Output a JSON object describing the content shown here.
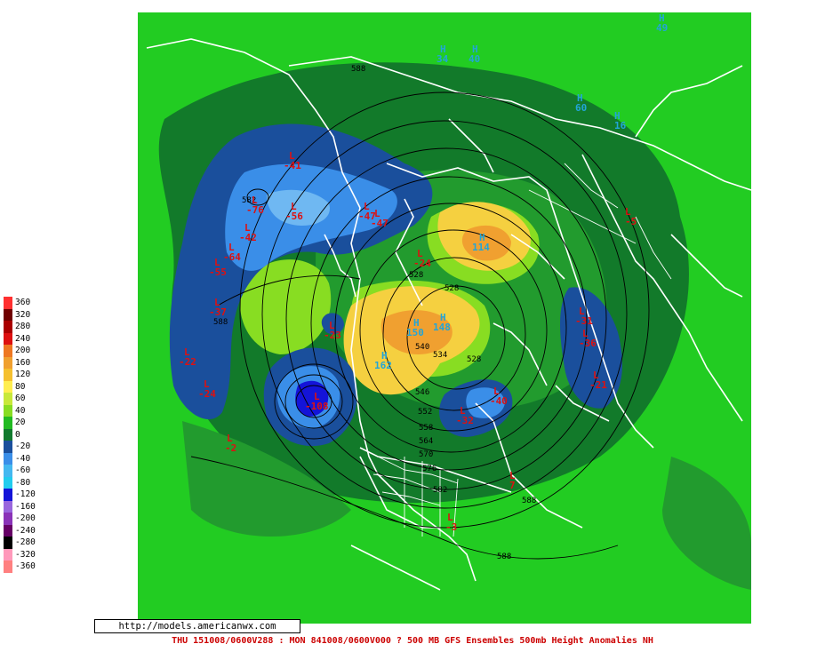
{
  "footer": {
    "text": "THU 151008/0600V288 : MON 841008/0600V000  ? 500 MB GFS Ensembles 500mb Height Anomalies NH"
  },
  "watermark": {
    "url": "http://models.americanwx.com"
  },
  "legend": {
    "bins": [
      {
        "label": "360",
        "color": "#ff3030"
      },
      {
        "label": "320",
        "color": "#700000"
      },
      {
        "label": "280",
        "color": "#aa0000"
      },
      {
        "label": "240",
        "color": "#dd1010"
      },
      {
        "label": "200",
        "color": "#ee7722"
      },
      {
        "label": "160",
        "color": "#f0a030"
      },
      {
        "label": "120",
        "color": "#f5c030"
      },
      {
        "label": "80",
        "color": "#ffee50"
      },
      {
        "label": "60",
        "color": "#c8e83a"
      },
      {
        "label": "40",
        "color": "#88dd22"
      },
      {
        "label": "20",
        "color": "#22bb22"
      },
      {
        "label": "0",
        "color": "#117a2e"
      },
      {
        "label": "-20",
        "color": "#1a4f9c"
      },
      {
        "label": "-40",
        "color": "#3a8ee8"
      },
      {
        "label": "-60",
        "color": "#44b8f0"
      },
      {
        "label": "-80",
        "color": "#22ccee"
      },
      {
        "label": "-120",
        "color": "#1414d8"
      },
      {
        "label": "-160",
        "color": "#9966dd"
      },
      {
        "label": "-200",
        "color": "#8a33b8"
      },
      {
        "label": "-240",
        "color": "#660066"
      },
      {
        "label": "-280",
        "color": "#000000"
      },
      {
        "label": "-320",
        "color": "#ff99bb"
      },
      {
        "label": "-360",
        "color": "#ff8080"
      }
    ]
  },
  "colors": {
    "background_green": "#22cc22",
    "dark_green": "#127a2a",
    "mid_green": "#229b2e",
    "light_green": "#88dd22",
    "yellow": "#f5d040",
    "orange": "#f0a030",
    "dark_blue": "#1a4f9c",
    "blue": "#3a8ee8",
    "light_blue": "#6fb8f2",
    "deep_blue": "#1414d8",
    "coast": "#ffffff",
    "contour": "#000000",
    "low_label": "#dd1111",
    "high_label": "#22a5d8"
  },
  "map": {
    "height_labels": [
      "588",
      "582",
      "588",
      "528",
      "528",
      "540",
      "534",
      "528",
      "546",
      "552",
      "558",
      "564",
      "570",
      "576",
      "582",
      "588",
      "588"
    ],
    "lows": [
      {
        "letter": "L",
        "value": "-41"
      },
      {
        "letter": "L",
        "value": "-76"
      },
      {
        "letter": "L",
        "value": "-56"
      },
      {
        "letter": "L",
        "value": "-42"
      },
      {
        "letter": "L",
        "value": "-64"
      },
      {
        "letter": "L",
        "value": "-55"
      },
      {
        "letter": "L",
        "value": "-47"
      },
      {
        "letter": "L",
        "value": "-47"
      },
      {
        "letter": "L",
        "value": "-37"
      },
      {
        "letter": "L",
        "value": "-22"
      },
      {
        "letter": "L",
        "value": "-24"
      },
      {
        "letter": "L",
        "value": "-2"
      },
      {
        "letter": "L",
        "value": "-24"
      },
      {
        "letter": "L",
        "value": "-23"
      },
      {
        "letter": "L",
        "value": "-108"
      },
      {
        "letter": "L",
        "value": "-40"
      },
      {
        "letter": "L",
        "value": "-32"
      },
      {
        "letter": "L",
        "value": "-21"
      },
      {
        "letter": "L",
        "value": "-3"
      },
      {
        "letter": "L",
        "value": "7"
      },
      {
        "letter": "L",
        "value": "-5"
      },
      {
        "letter": "L",
        "value": "-31"
      },
      {
        "letter": "L",
        "value": "-36"
      }
    ],
    "highs": [
      {
        "letter": "H",
        "value": "114"
      },
      {
        "letter": "H",
        "value": "150"
      },
      {
        "letter": "H",
        "value": "148"
      },
      {
        "letter": "H",
        "value": "162"
      },
      {
        "letter": "H",
        "value": "49"
      },
      {
        "letter": "H",
        "value": "60"
      },
      {
        "letter": "H",
        "value": "16"
      },
      {
        "letter": "H",
        "value": "34"
      },
      {
        "letter": "H",
        "value": "40"
      }
    ]
  }
}
